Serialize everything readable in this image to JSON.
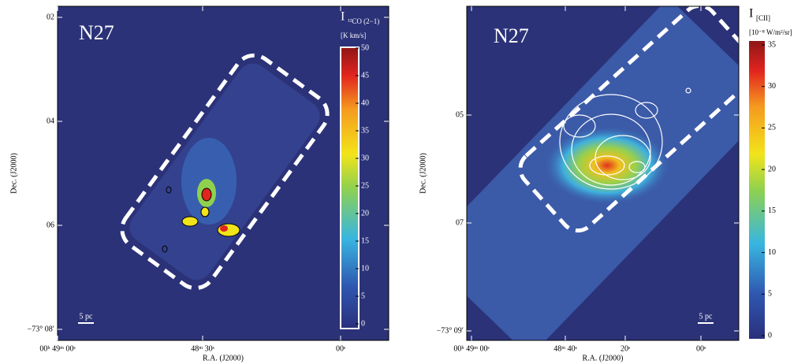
{
  "panels": [
    {
      "title": "N27",
      "scale_bar": "5 pc",
      "xlabel": "R.A. (J2000)",
      "ylabel": "Dec. (J2000)",
      "yticks": [
        "02",
        "04",
        "06",
        "−73° 08′"
      ],
      "xticks": [
        "00ʰ 49ᵐ 00ˢ",
        "48ᵐ 30ˢ",
        "00ˢ"
      ],
      "colorbar": {
        "symbol": "I",
        "sub": "¹²CO (2−1)",
        "unit": "[K km/s]",
        "ticks": [
          0,
          5,
          10,
          15,
          20,
          25,
          30,
          35,
          40,
          45,
          50
        ]
      }
    },
    {
      "title": "N27",
      "scale_bar": "5 pc",
      "xlabel": "R.A. (J2000)",
      "ylabel": "Dec. (J2000)",
      "yticks": [
        "05",
        "07",
        "−73° 09′"
      ],
      "xticks": [
        "00ʰ 49ᵐ 00ˢ",
        "48ᵐ 40ˢ",
        "20ˢ",
        "00ˢ"
      ],
      "colorbar": {
        "symbol": "I",
        "sub": "[CII]",
        "unit": "[10⁻⁸ W/m²/sr]",
        "ticks": [
          0,
          5,
          10,
          15,
          20,
          25,
          30,
          35
        ]
      }
    }
  ]
}
